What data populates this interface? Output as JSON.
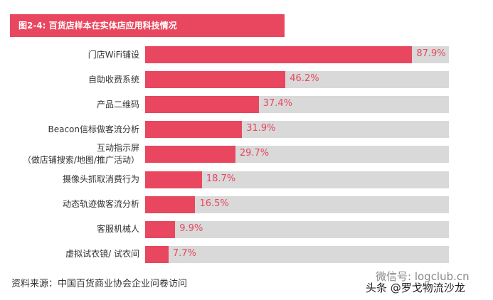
{
  "chart_data": {
    "type": "bar",
    "orientation": "horizontal",
    "title": "图2-4: 百货店样本在实体店应用科技情况",
    "categories": [
      "门店WiFi铺设",
      "自助收费系统",
      "产品二维码",
      "Beacon信标做客流分析",
      "互动指示屏\n（做店铺搜索/地图/推广活动）",
      "摄像头抓取消费行为",
      "动态轨迹做客流分析",
      "客服机械人",
      "虚拟试衣镜/ 试衣间"
    ],
    "values": [
      87.9,
      46.2,
      37.4,
      31.9,
      29.7,
      18.7,
      16.5,
      9.9,
      7.7
    ],
    "value_labels": [
      "87.9%",
      "46.2%",
      "37.4%",
      "31.9%",
      "29.7%",
      "18.7%",
      "16.5%",
      "9.9%",
      "7.7%"
    ],
    "color": "#e8475f",
    "track_color": "#d9d9d9",
    "xlim": [
      0,
      100
    ],
    "source": "资料来源：中国百货商业协会企业问卷访问",
    "watermarks": [
      "微信号: logclub.cn",
      "头条 @罗戈物流沙龙"
    ]
  }
}
